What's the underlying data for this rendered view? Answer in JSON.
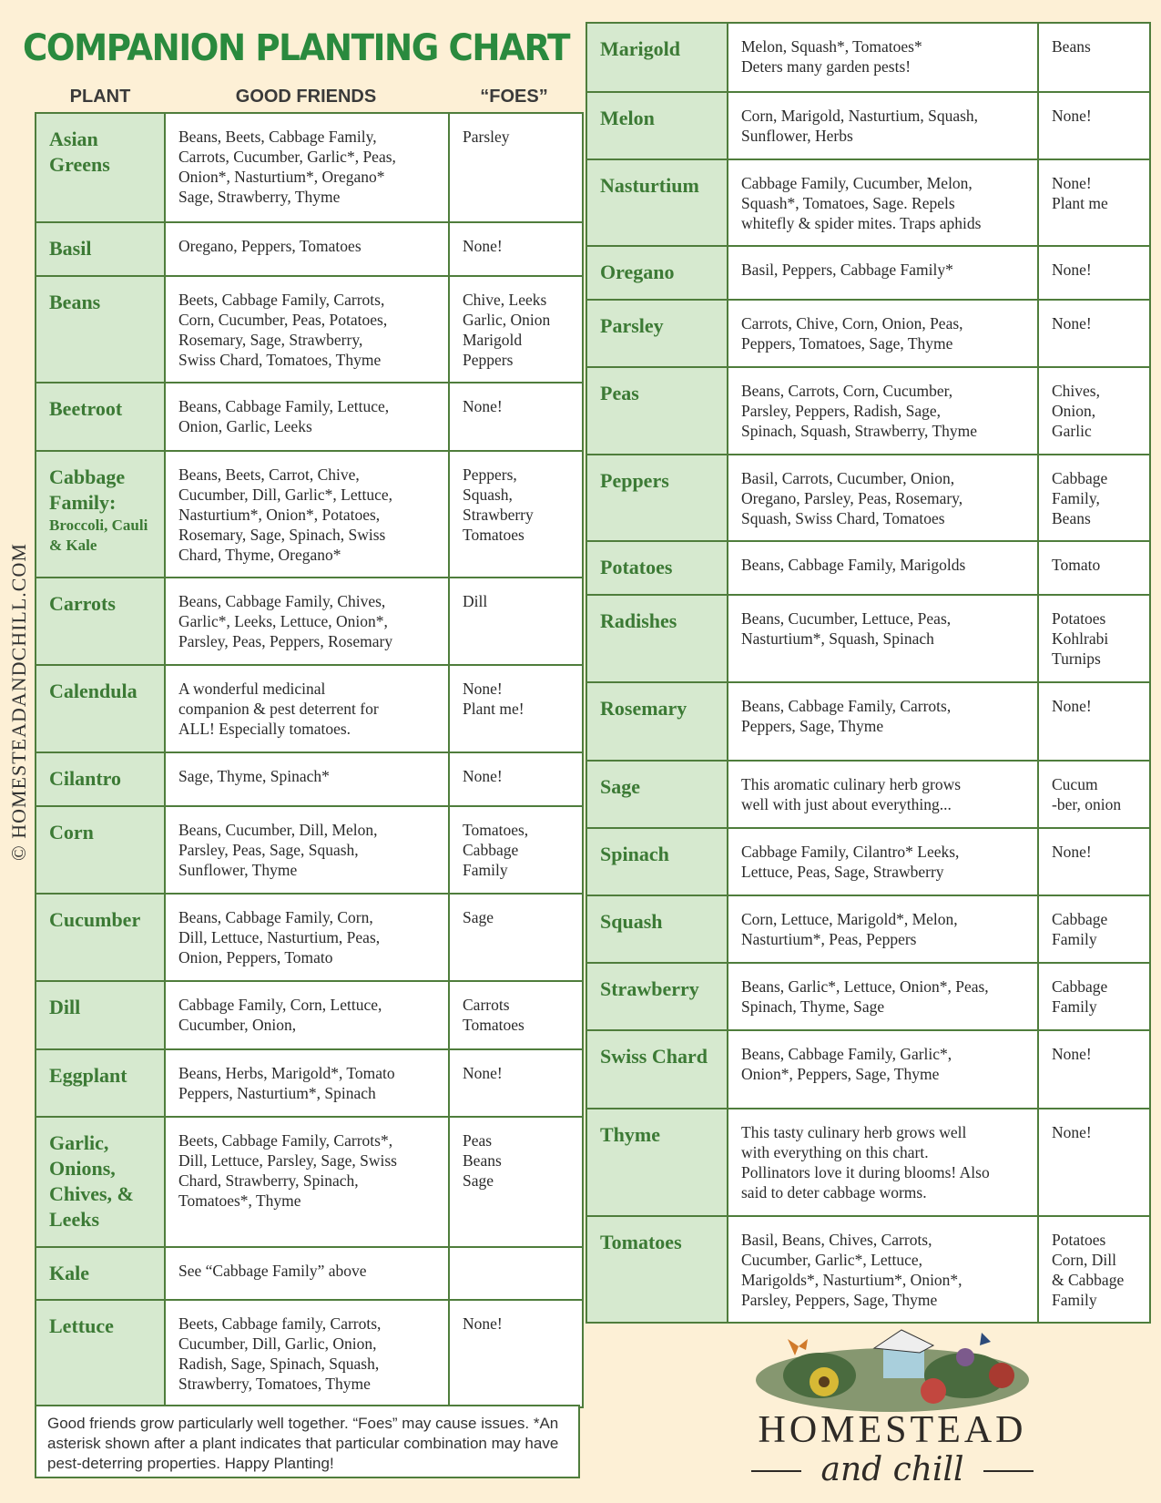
{
  "title": "COMPANION PLANTING CHART",
  "headers": {
    "plant": "PLANT",
    "friends": "GOOD FRIENDS",
    "foes": "“FOES”"
  },
  "colors": {
    "background": "#fdf0d6",
    "title_green": "#2a8a3e",
    "plant_cell": "#d6e9cf",
    "border": "#4f7d3c",
    "plant_text": "#3c7a35"
  },
  "left_rows": [
    {
      "plant": "Asian Greens",
      "friends": "Beans, Beets, Cabbage Family,\nCarrots, Cucumber, Garlic*, Peas,\nOnion*, Nasturtium*, Oregano*\nSage, Strawberry, Thyme",
      "foes": "Parsley"
    },
    {
      "plant": "Basil",
      "friends": "Oregano, Peppers, Tomatoes",
      "foes": "None!"
    },
    {
      "plant": "Beans",
      "friends": "Beets, Cabbage Family, Carrots,\nCorn, Cucumber, Peas, Potatoes,\nRosemary, Sage, Strawberry,\nSwiss Chard, Tomatoes, Thyme",
      "foes": "Chive, Leeks\nGarlic, Onion\nMarigold\nPeppers"
    },
    {
      "plant": "Beetroot",
      "friends": "Beans, Cabbage Family, Lettuce,\nOnion, Garlic, Leeks",
      "foes": "None!"
    },
    {
      "plant": "Cabbage Family:",
      "plant_sub": "Broccoli, Cauli & Kale",
      "friends": "Beans, Beets, Carrot, Chive,\nCucumber, Dill, Garlic*, Lettuce,\nNasturtium*, Onion*, Potatoes,\nRosemary, Sage, Spinach, Swiss\nChard, Thyme, Oregano*",
      "foes": "Peppers,\nSquash,\nStrawberry\nTomatoes"
    },
    {
      "plant": "Carrots",
      "friends": "Beans, Cabbage Family, Chives,\nGarlic*, Leeks, Lettuce, Onion*,\nParsley, Peas, Peppers, Rosemary",
      "foes": "Dill"
    },
    {
      "plant": "Calendula",
      "friends": "A wonderful medicinal\ncompanion & pest deterrent for\nALL! Especially tomatoes.",
      "foes": "None!\nPlant me!"
    },
    {
      "plant": "Cilantro",
      "friends": "Sage, Thyme, Spinach*",
      "foes": "None!"
    },
    {
      "plant": "Corn",
      "friends": "Beans, Cucumber, Dill, Melon,\nParsley, Peas, Sage, Squash,\nSunflower, Thyme",
      "foes": "Tomatoes,\nCabbage\nFamily"
    },
    {
      "plant": "Cucumber",
      "friends": "Beans, Cabbage Family, Corn,\nDill, Lettuce, Nasturtium, Peas,\nOnion, Peppers, Tomato",
      "foes": "Sage"
    },
    {
      "plant": "Dill",
      "friends": "Cabbage Family, Corn, Lettuce,\nCucumber, Onion,",
      "foes": "Carrots\nTomatoes"
    },
    {
      "plant": "Eggplant",
      "friends": "Beans, Herbs, Marigold*, Tomato\nPeppers, Nasturtium*, Spinach",
      "foes": "None!"
    },
    {
      "plant": "Garlic, Onions, Chives, & Leeks",
      "friends": "Beets, Cabbage Family, Carrots*,\nDill, Lettuce, Parsley, Sage, Swiss\nChard, Strawberry, Spinach,\nTomatoes*, Thyme",
      "foes": "Peas\nBeans\nSage"
    },
    {
      "plant": "Kale",
      "friends": "See “Cabbage Family” above",
      "foes": ""
    },
    {
      "plant": "Lettuce",
      "friends": "Beets, Cabbage family, Carrots,\nCucumber, Dill, Garlic, Onion,\nRadish, Sage, Spinach, Squash,\nStrawberry, Tomatoes, Thyme",
      "foes": "None!"
    }
  ],
  "right_rows": [
    {
      "plant": "Marigold",
      "friends": "Melon, Squash*, Tomatoes*\nDeters many garden pests!",
      "foes": "Beans"
    },
    {
      "plant": "Melon",
      "friends": "Corn, Marigold, Nasturtium, Squash,\nSunflower, Herbs",
      "foes": "None!"
    },
    {
      "plant": "Nasturtium",
      "friends": "Cabbage Family, Cucumber, Melon,\nSquash*, Tomatoes, Sage. Repels\nwhitefly & spider mites. Traps aphids",
      "foes": "None!\nPlant me"
    },
    {
      "plant": "Oregano",
      "friends": "Basil, Peppers, Cabbage Family*",
      "foes": "None!"
    },
    {
      "plant": "Parsley",
      "friends": "Carrots, Chive, Corn, Onion, Peas,\nPeppers, Tomatoes, Sage, Thyme",
      "foes": "None!"
    },
    {
      "plant": "Peas",
      "friends": "Beans, Carrots, Corn, Cucumber,\nParsley, Peppers, Radish, Sage,\nSpinach, Squash, Strawberry, Thyme",
      "foes": "Chives,\nOnion,\nGarlic"
    },
    {
      "plant": "Peppers",
      "friends": "Basil, Carrots, Cucumber, Onion,\nOregano, Parsley, Peas, Rosemary,\nSquash, Swiss Chard, Tomatoes",
      "foes": "Cabbage\nFamily,\nBeans"
    },
    {
      "plant": "Potatoes",
      "friends": "Beans, Cabbage Family, Marigolds",
      "foes": "Tomato"
    },
    {
      "plant": "Radishes",
      "friends": "Beans, Cucumber, Lettuce, Peas,\nNasturtium*, Squash, Spinach",
      "foes": "Potatoes\nKohlrabi\nTurnips"
    },
    {
      "plant": "Rosemary",
      "friends": "Beans, Cabbage Family, Carrots,\nPeppers, Sage, Thyme",
      "foes": "None!"
    },
    {
      "plant": "Sage",
      "friends": "This aromatic culinary herb grows\nwell with just about everything...",
      "foes": "Cucum\n-ber, onion"
    },
    {
      "plant": "Spinach",
      "friends": "Cabbage Family, Cilantro* Leeks,\nLettuce, Peas, Sage, Strawberry",
      "foes": "None!"
    },
    {
      "plant": "Squash",
      "friends": "Corn, Lettuce, Marigold*, Melon,\nNasturtium*, Peas, Peppers",
      "foes": "Cabbage\nFamily"
    },
    {
      "plant": "Strawberry",
      "friends": "Beans, Garlic*, Lettuce, Onion*, Peas,\nSpinach, Thyme, Sage",
      "foes": "Cabbage\nFamily"
    },
    {
      "plant": "Swiss Chard",
      "friends": "Beans, Cabbage Family, Garlic*,\nOnion*, Peppers, Sage, Thyme",
      "foes": "None!"
    },
    {
      "plant": "Thyme",
      "friends": "This tasty culinary herb grows well\nwith everything on this chart.\nPollinators love it during blooms! Also\nsaid to deter cabbage worms.",
      "foes": "None!"
    },
    {
      "plant": "Tomatoes",
      "friends": "Basil, Beans, Chives, Carrots,\nCucumber, Garlic*, Lettuce,\nMarigolds*, Nasturtium*, Onion*,\nParsley, Peppers, Sage, Thyme",
      "foes": "Potatoes\nCorn, Dill\n& Cabbage\nFamily"
    }
  ],
  "footer": "Good friends grow particularly well together. “Foes” may cause issues. *An asterisk shown after a plant indicates that particular combination may have pest-deterring properties. Happy Planting!",
  "watermark": "© HOMESTEADANDCHILL.COM",
  "logo": {
    "line1": "HOMESTEAD",
    "line2": "and chill"
  }
}
